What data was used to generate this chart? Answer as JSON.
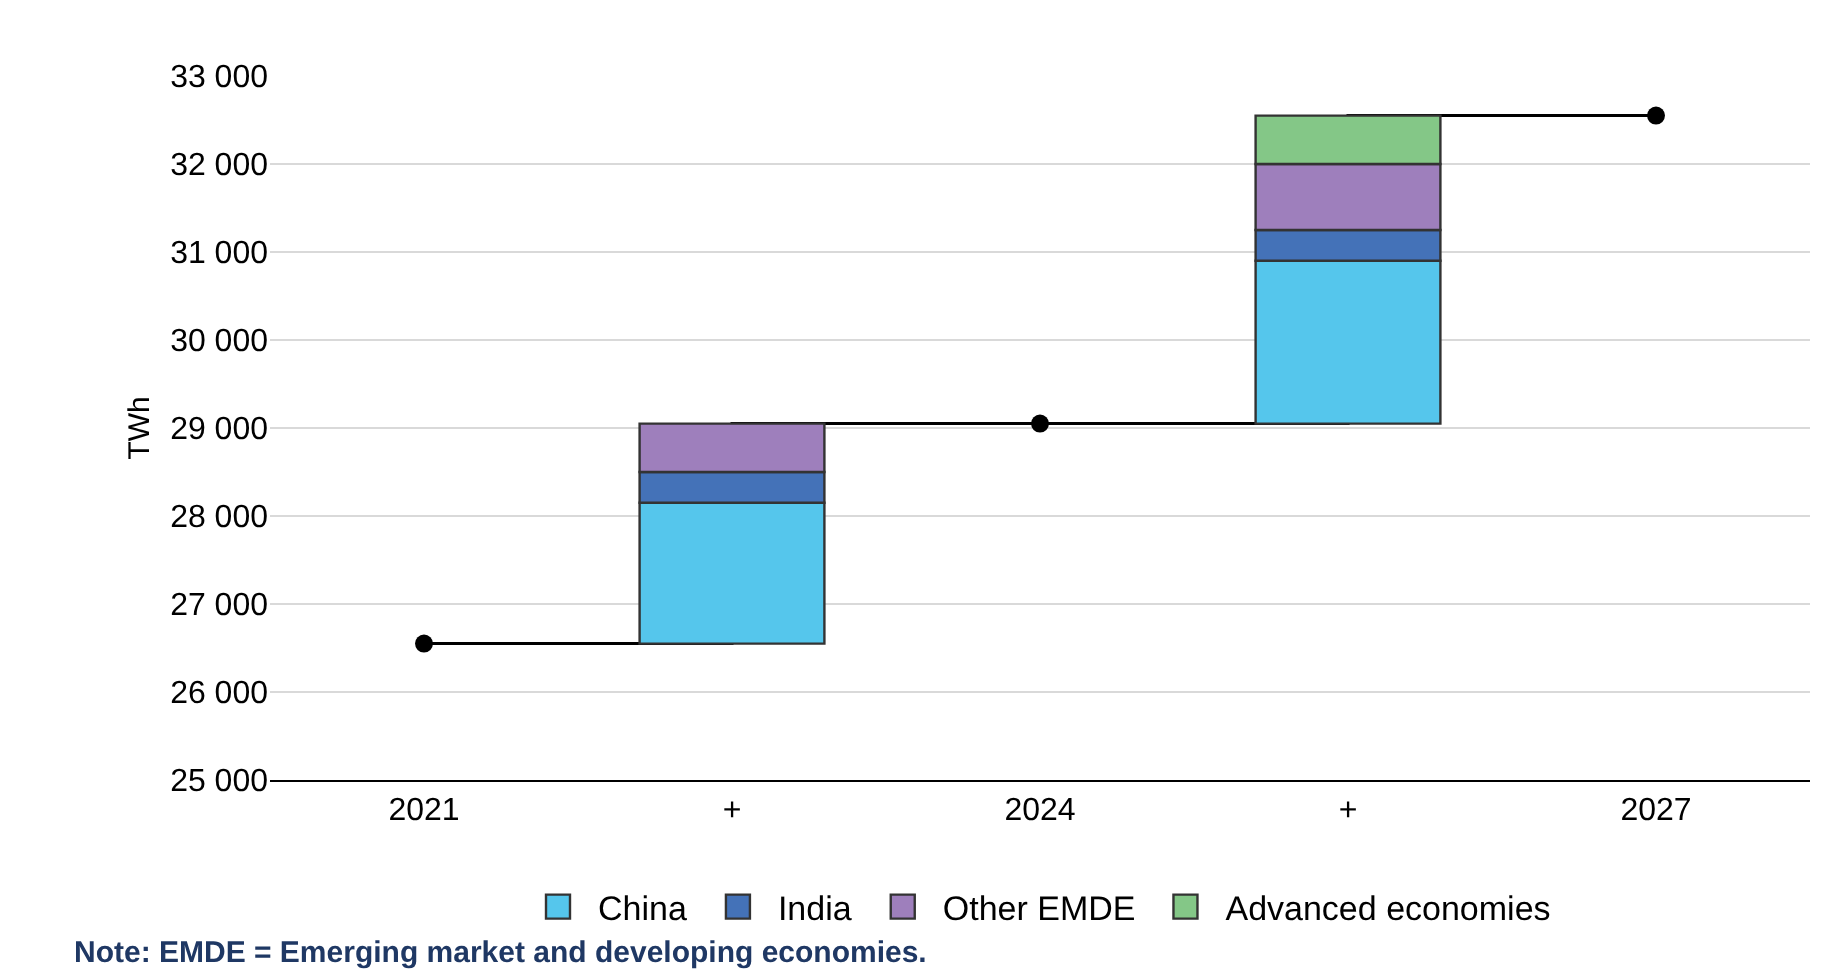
{
  "chart_data": {
    "type": "bar",
    "ylabel": "TWh",
    "categories": [
      "2021",
      "+",
      "2024",
      "+",
      "2027"
    ],
    "series": [
      {
        "name": "China",
        "color": "#55c6ec",
        "base": [
          null,
          26550,
          null,
          29050,
          null
        ],
        "values": [
          null,
          1600,
          null,
          1850,
          null
        ]
      },
      {
        "name": "India",
        "color": "#4472b8",
        "base": [
          null,
          28150,
          null,
          30900,
          null
        ],
        "values": [
          null,
          350,
          null,
          350,
          null
        ]
      },
      {
        "name": "Other EMDE",
        "color": "#9e7fbc",
        "base": [
          null,
          28500,
          null,
          31250,
          null
        ],
        "values": [
          null,
          550,
          null,
          750,
          null
        ]
      },
      {
        "name": "Advanced economies",
        "color": "#84c787",
        "base": [
          null,
          null,
          null,
          32000,
          null
        ],
        "values": [
          null,
          null,
          null,
          550,
          null
        ]
      },
      {
        "type": "step",
        "color": "#000000",
        "marker": "circle",
        "values": [
          26550,
          null,
          29050,
          null,
          32550
        ]
      }
    ],
    "ylim": [
      25000,
      33000
    ],
    "yticks": [
      {
        "value": 25000,
        "label": "25 000"
      },
      {
        "value": 26000,
        "label": "26 000"
      },
      {
        "value": 27000,
        "label": "27 000"
      },
      {
        "value": 28000,
        "label": "28 000"
      },
      {
        "value": 29000,
        "label": "29 000"
      },
      {
        "value": 30000,
        "label": "30 000"
      },
      {
        "value": 31000,
        "label": "31 000"
      },
      {
        "value": 32000,
        "label": "32 000"
      },
      {
        "value": 33000,
        "label": "33 000"
      }
    ],
    "grid": "y",
    "legend": "bottom",
    "annotations": [
      "Note: EMDE = Emerging market and developing economies."
    ]
  }
}
